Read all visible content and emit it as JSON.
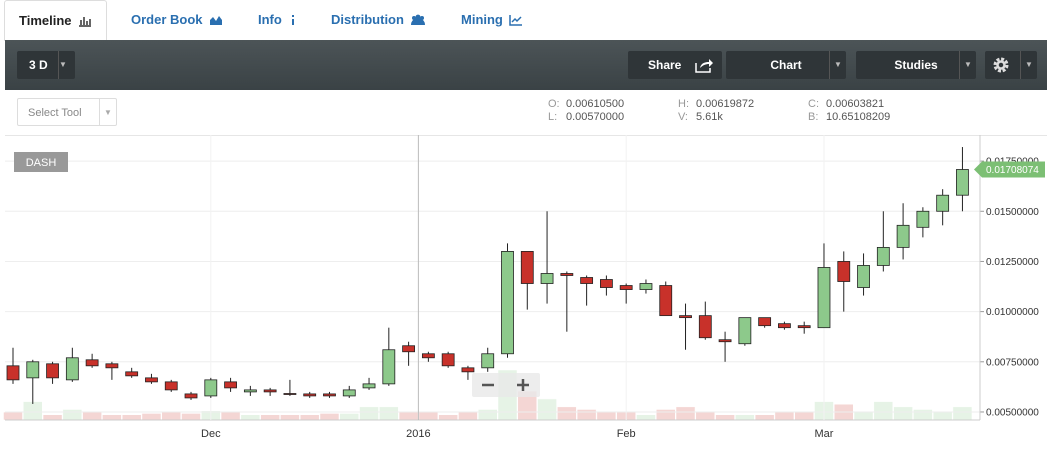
{
  "tabs": [
    "Timeline",
    "Order Book",
    "Info",
    "Distribution",
    "Mining"
  ],
  "toolbar": {
    "interval": "3 D",
    "share": "Share",
    "chart": "Chart",
    "studies": "Studies"
  },
  "select_tool": "Select Tool",
  "ohlc_info": [
    {
      "label": "O:",
      "value": "0.00610500"
    },
    {
      "label": "L:",
      "value": "0.00570000"
    },
    {
      "label": "H:",
      "value": "0.00619872"
    },
    {
      "label": "V:",
      "value": "5.61k"
    },
    {
      "label": "C:",
      "value": "0.00603821"
    },
    {
      "label": "B:",
      "value": "10.65108209"
    }
  ],
  "chart_data": {
    "type": "candlestick",
    "symbol": "DASH",
    "categories": [
      null,
      null,
      null,
      null,
      null,
      null,
      null,
      null,
      null,
      null,
      "Dec",
      null,
      null,
      null,
      null,
      null,
      null,
      null,
      null,
      null,
      null,
      "2016",
      null,
      null,
      null,
      null,
      null,
      null,
      null,
      null,
      null,
      "Feb",
      null,
      null,
      null,
      null,
      null,
      null,
      null,
      null,
      null,
      "Mar",
      null,
      null,
      null,
      null,
      null,
      null,
      null
    ],
    "open": [
      0.0073,
      0.0067,
      0.0074,
      0.0066,
      0.0076,
      0.0074,
      0.007,
      0.0067,
      0.0065,
      0.0059,
      0.0058,
      0.0065,
      0.006,
      0.0061,
      0.00592,
      0.0059,
      0.0059,
      0.0058,
      0.0062,
      0.0064,
      0.0083,
      0.0079,
      0.0079,
      0.0072,
      0.0072,
      0.0079,
      0.013,
      0.0114,
      0.0119,
      0.0117,
      0.0116,
      0.0113,
      0.0111,
      0.0113,
      0.0098,
      0.0098,
      0.0086,
      0.0084,
      0.0097,
      0.0094,
      0.0093,
      0.0092,
      0.0125,
      0.0112,
      0.0123,
      0.0132,
      0.0142,
      0.015,
      0.0158
    ],
    "high": [
      0.0082,
      0.0076,
      0.0075,
      0.0082,
      0.0079,
      0.0075,
      0.0072,
      0.0069,
      0.0066,
      0.006,
      0.0067,
      0.0067,
      0.0063,
      0.0062,
      0.0066,
      0.006,
      0.006,
      0.0063,
      0.0067,
      0.0092,
      0.0085,
      0.008,
      0.008,
      0.0073,
      0.0082,
      0.0134,
      0.013,
      0.015,
      0.012,
      0.0118,
      0.0118,
      0.0114,
      0.0116,
      0.0115,
      0.0104,
      0.0105,
      0.009,
      0.0097,
      0.0097,
      0.0095,
      0.0095,
      0.0134,
      0.013,
      0.0129,
      0.015,
      0.0154,
      0.0152,
      0.0161,
      0.0182
    ],
    "low": [
      0.0064,
      0.0054,
      0.0064,
      0.0065,
      0.0072,
      0.0066,
      0.0067,
      0.0064,
      0.006,
      0.0056,
      0.0057,
      0.006,
      0.0058,
      0.0058,
      0.0058,
      0.0057,
      0.0057,
      0.0057,
      0.0061,
      0.0063,
      0.0073,
      0.0075,
      0.0072,
      0.0066,
      0.007,
      0.0077,
      0.0101,
      0.0104,
      0.009,
      0.0103,
      0.0108,
      0.0104,
      0.0109,
      0.0098,
      0.0081,
      0.0086,
      0.0075,
      0.0083,
      0.0092,
      0.0091,
      0.0089,
      0.0092,
      0.01,
      0.0108,
      0.012,
      0.0126,
      0.0137,
      0.0143,
      0.015
    ],
    "close": [
      0.0066,
      0.0075,
      0.0067,
      0.0077,
      0.0073,
      0.0072,
      0.0068,
      0.0065,
      0.0061,
      0.0057,
      0.0066,
      0.0062,
      0.0061,
      0.006,
      0.00588,
      0.0058,
      0.0058,
      0.0061,
      0.0064,
      0.0081,
      0.008,
      0.0077,
      0.0073,
      0.007,
      0.0079,
      0.013,
      0.0114,
      0.0119,
      0.0118,
      0.0114,
      0.0112,
      0.0111,
      0.0114,
      0.0098,
      0.0097,
      0.0087,
      0.0085,
      0.0097,
      0.0093,
      0.0092,
      0.0092,
      0.0122,
      0.0115,
      0.0123,
      0.0132,
      0.0143,
      0.015,
      0.0158,
      0.01708074
    ],
    "volume": [
      6,
      14,
      4,
      8,
      6,
      4,
      4,
      5,
      6,
      5,
      7,
      6,
      4,
      4,
      4,
      4,
      5,
      5,
      10,
      10,
      6,
      6,
      4,
      6,
      8,
      38,
      22,
      16,
      10,
      8,
      6,
      6,
      4,
      8,
      10,
      6,
      4,
      4,
      4,
      6,
      6,
      14,
      12,
      6,
      14,
      10,
      8,
      6,
      10
    ],
    "last_label": "0.01708074",
    "up_color": "#8dc98b",
    "down_color": "#c8312a",
    "ylim": [
      0.0046,
      0.0188
    ],
    "yticks": [
      {
        "value": 0.005,
        "label": "0.00500000"
      },
      {
        "value": 0.0075,
        "label": "0.00750000"
      },
      {
        "value": 0.01,
        "label": "0.01000000"
      },
      {
        "value": 0.0125,
        "label": "0.01250000"
      },
      {
        "value": 0.015,
        "label": "0.01500000"
      },
      {
        "value": 0.0175,
        "label": "0.01750000"
      }
    ],
    "grid": true
  }
}
